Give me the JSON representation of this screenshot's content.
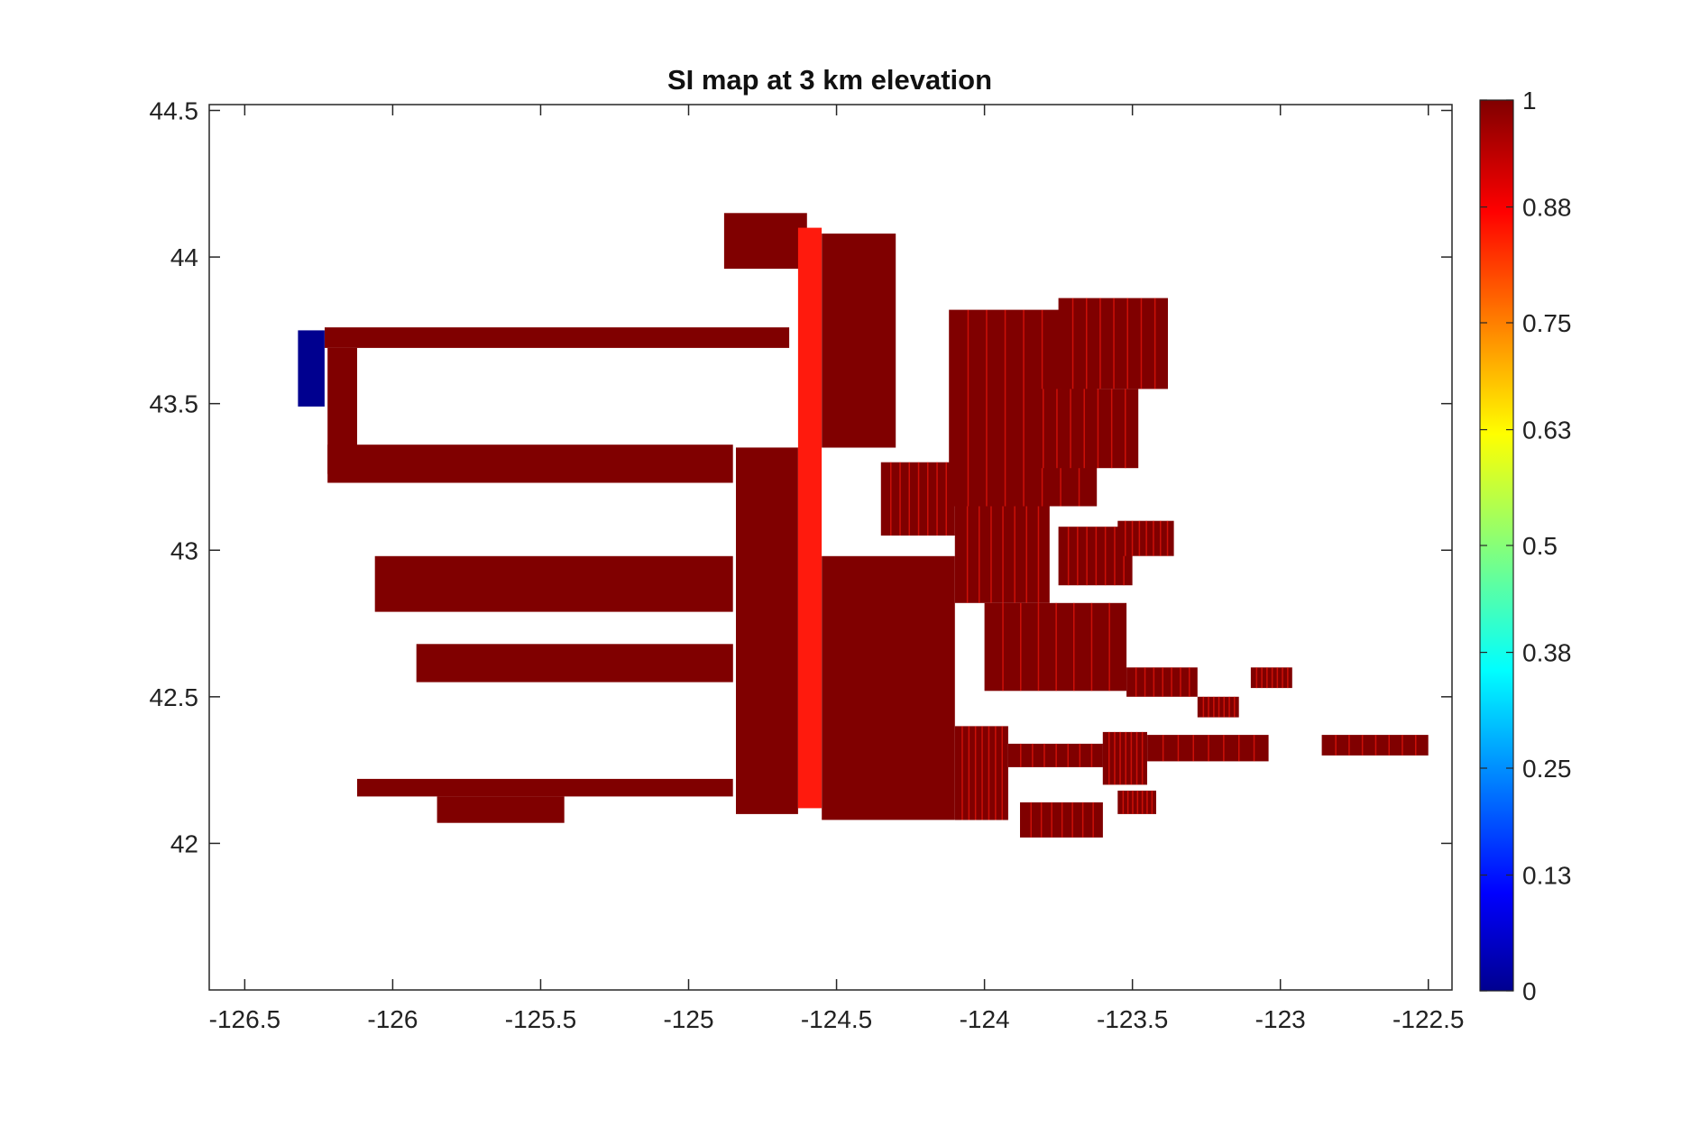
{
  "chart_data": {
    "type": "heatmap",
    "title": "SI map at 3 km elevation",
    "xlabel": "",
    "ylabel": "",
    "xlim": [
      -126.62,
      -122.42
    ],
    "ylim": [
      41.5,
      44.52
    ],
    "x_ticks": [
      "-126.5",
      "-126",
      "-125.5",
      "-125",
      "-124.5",
      "-124",
      "-123.5",
      "-123",
      "-122.5"
    ],
    "x_tick_values": [
      -126.5,
      -126,
      -125.5,
      -125,
      -124.5,
      -124,
      -123.5,
      -123,
      -122.5
    ],
    "y_ticks": [
      "44.5",
      "44",
      "43.5",
      "43",
      "42.5",
      "42"
    ],
    "y_tick_values": [
      44.5,
      44,
      43.5,
      43,
      42.5,
      42
    ],
    "colorbar": {
      "colormap": "jet",
      "clim": [
        0,
        1
      ],
      "ticks": [
        "0",
        "0.13",
        "0.25",
        "0.38",
        "0.5",
        "0.63",
        "0.75",
        "0.88",
        "1"
      ],
      "tick_values": [
        0,
        0.13,
        0.25,
        0.38,
        0.5,
        0.63,
        0.75,
        0.88,
        1
      ]
    },
    "colors": {
      "si_1": "#800000",
      "si_093": "#ff1a0d",
      "si_0": "#00008f"
    },
    "grid": false,
    "regions": [
      {
        "name": "line-1",
        "si": 1,
        "lon": [
          -126.23,
          -124.66
        ],
        "lat": [
          43.69,
          43.76
        ]
      },
      {
        "name": "line-2",
        "si": 1,
        "lon": [
          -126.22,
          -124.85
        ],
        "lat": [
          43.23,
          43.36
        ]
      },
      {
        "name": "link-1-2",
        "si": 1,
        "lon": [
          -126.22,
          -126.12
        ],
        "lat": [
          43.26,
          43.69
        ]
      },
      {
        "name": "line-3",
        "si": 1,
        "lon": [
          -126.06,
          -124.85
        ],
        "lat": [
          42.79,
          42.98
        ]
      },
      {
        "name": "line-4",
        "si": 1,
        "lon": [
          -125.92,
          -124.85
        ],
        "lat": [
          42.55,
          42.68
        ]
      },
      {
        "name": "line-5",
        "si": 1,
        "lon": [
          -126.12,
          -124.85
        ],
        "lat": [
          42.16,
          42.22
        ]
      },
      {
        "name": "line-5-tail",
        "si": 1,
        "lon": [
          -125.85,
          -125.42
        ],
        "lat": [
          42.07,
          42.16
        ]
      },
      {
        "name": "west-edge-low-si",
        "si": 0.0,
        "lon": [
          -126.32,
          -126.23
        ],
        "lat": [
          43.49,
          43.75
        ]
      },
      {
        "name": "central-block",
        "si": 1,
        "lon": [
          -124.84,
          -124.63
        ],
        "lat": [
          42.1,
          43.35
        ]
      },
      {
        "name": "north-arm",
        "si": 1,
        "lon": [
          -124.88,
          -124.6
        ],
        "lat": [
          43.96,
          44.15
        ]
      },
      {
        "name": "central-stripe",
        "si": 0.93,
        "lon": [
          -124.63,
          -124.55
        ],
        "lat": [
          42.12,
          44.1
        ]
      },
      {
        "name": "east-block-south",
        "si": 1,
        "lon": [
          -124.55,
          -124.1
        ],
        "lat": [
          42.08,
          42.98
        ]
      },
      {
        "name": "east-block-north",
        "si": 1,
        "lon": [
          -124.55,
          -124.3
        ],
        "lat": [
          43.35,
          44.08
        ]
      },
      {
        "name": "east-mid-1",
        "si": 1,
        "lon": [
          -124.35,
          -124.1
        ],
        "lat": [
          43.05,
          43.3
        ]
      },
      {
        "name": "east-patch-1",
        "si": 1,
        "lon": [
          -124.12,
          -123.62
        ],
        "lat": [
          43.15,
          43.82
        ]
      },
      {
        "name": "east-patch-2",
        "si": 1,
        "lon": [
          -123.75,
          -123.38
        ],
        "lat": [
          43.55,
          43.86
        ]
      },
      {
        "name": "east-patch-3",
        "si": 1,
        "lon": [
          -123.85,
          -123.48
        ],
        "lat": [
          43.28,
          43.55
        ]
      },
      {
        "name": "east-patch-4",
        "si": 1,
        "lon": [
          -124.1,
          -123.78
        ],
        "lat": [
          42.82,
          43.15
        ]
      },
      {
        "name": "east-patch-5",
        "si": 1,
        "lon": [
          -123.75,
          -123.5
        ],
        "lat": [
          42.88,
          43.08
        ]
      },
      {
        "name": "east-patch-6",
        "si": 1,
        "lon": [
          -123.55,
          -123.36
        ],
        "lat": [
          42.98,
          43.1
        ]
      },
      {
        "name": "east-patch-7",
        "si": 1,
        "lon": [
          -124.0,
          -123.52
        ],
        "lat": [
          42.52,
          42.82
        ]
      },
      {
        "name": "east-patch-8",
        "si": 1,
        "lon": [
          -123.52,
          -123.28
        ],
        "lat": [
          42.5,
          42.6
        ]
      },
      {
        "name": "east-patch-9",
        "si": 1,
        "lon": [
          -123.1,
          -122.96
        ],
        "lat": [
          42.53,
          42.6
        ]
      },
      {
        "name": "east-patch-10",
        "si": 1,
        "lon": [
          -123.28,
          -123.14
        ],
        "lat": [
          42.43,
          42.5
        ]
      },
      {
        "name": "east-patch-11",
        "si": 1,
        "lon": [
          -124.1,
          -123.92
        ],
        "lat": [
          42.08,
          42.4
        ]
      },
      {
        "name": "east-patch-12",
        "si": 1,
        "lon": [
          -123.92,
          -123.6
        ],
        "lat": [
          42.26,
          42.34
        ]
      },
      {
        "name": "east-patch-13",
        "si": 1,
        "lon": [
          -123.6,
          -123.45
        ],
        "lat": [
          42.2,
          42.38
        ]
      },
      {
        "name": "east-patch-14",
        "si": 1,
        "lon": [
          -123.45,
          -123.04
        ],
        "lat": [
          42.28,
          42.37
        ]
      },
      {
        "name": "east-patch-15",
        "si": 1,
        "lon": [
          -122.86,
          -122.5
        ],
        "lat": [
          42.3,
          42.37
        ]
      },
      {
        "name": "east-patch-16",
        "si": 1,
        "lon": [
          -123.88,
          -123.6
        ],
        "lat": [
          42.02,
          42.14
        ]
      },
      {
        "name": "east-patch-17",
        "si": 1,
        "lon": [
          -123.55,
          -123.42
        ],
        "lat": [
          42.1,
          42.18
        ]
      }
    ]
  }
}
